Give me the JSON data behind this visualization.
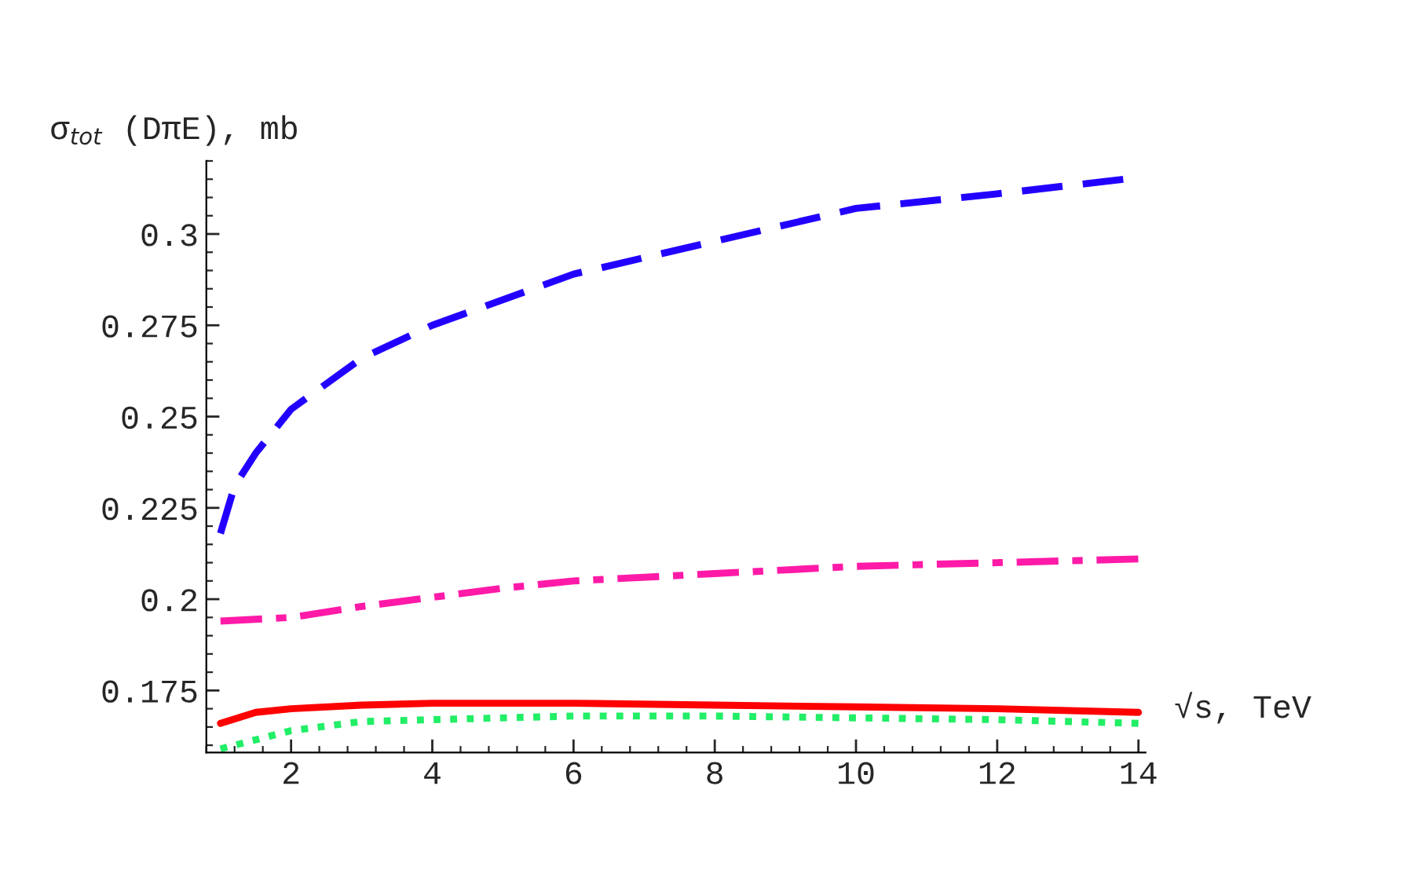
{
  "chart_data": {
    "type": "line",
    "xlabel": "√s, TeV",
    "ylabel": "σ$_{tot}$ (DπE), mb",
    "xlim": [
      0.8,
      14.1
    ],
    "xticks": [
      2,
      4,
      6,
      8,
      10,
      12,
      14
    ],
    "ylim": [
      0.158,
      0.32
    ],
    "yticks": [
      0.175,
      0.2,
      0.225,
      0.25,
      0.275,
      0.3
    ],
    "grid": false,
    "legend": false,
    "marker": "none",
    "series": [
      {
        "color": "#2200ff",
        "line_style": "dashed",
        "x": [
          1,
          1.2,
          1.5,
          2,
          3,
          4,
          6,
          8,
          10,
          12,
          13.8
        ],
        "values": [
          0.218,
          0.231,
          0.24,
          0.252,
          0.266,
          0.275,
          0.289,
          0.298,
          0.307,
          0.311,
          0.315
        ]
      },
      {
        "color": "#ff1aa8",
        "line_style": "dashdot",
        "x": [
          1,
          2,
          3,
          4,
          5,
          6,
          8,
          10,
          12,
          14
        ],
        "values": [
          0.194,
          0.195,
          0.198,
          0.2005,
          0.203,
          0.205,
          0.207,
          0.209,
          0.21,
          0.211
        ]
      },
      {
        "color": "#ff0000",
        "line_style": "solid",
        "x": [
          1,
          1.5,
          2,
          3,
          4,
          6,
          8,
          10,
          12,
          14
        ],
        "values": [
          0.166,
          0.169,
          0.17,
          0.171,
          0.1715,
          0.1715,
          0.171,
          0.1705,
          0.17,
          0.169
        ]
      },
      {
        "color": "#22ee66",
        "line_style": "dotted",
        "x": [
          1,
          2,
          3,
          4,
          6,
          8,
          10,
          12,
          14
        ],
        "values": [
          0.159,
          0.164,
          0.1665,
          0.167,
          0.168,
          0.168,
          0.1675,
          0.167,
          0.166
        ]
      }
    ]
  }
}
